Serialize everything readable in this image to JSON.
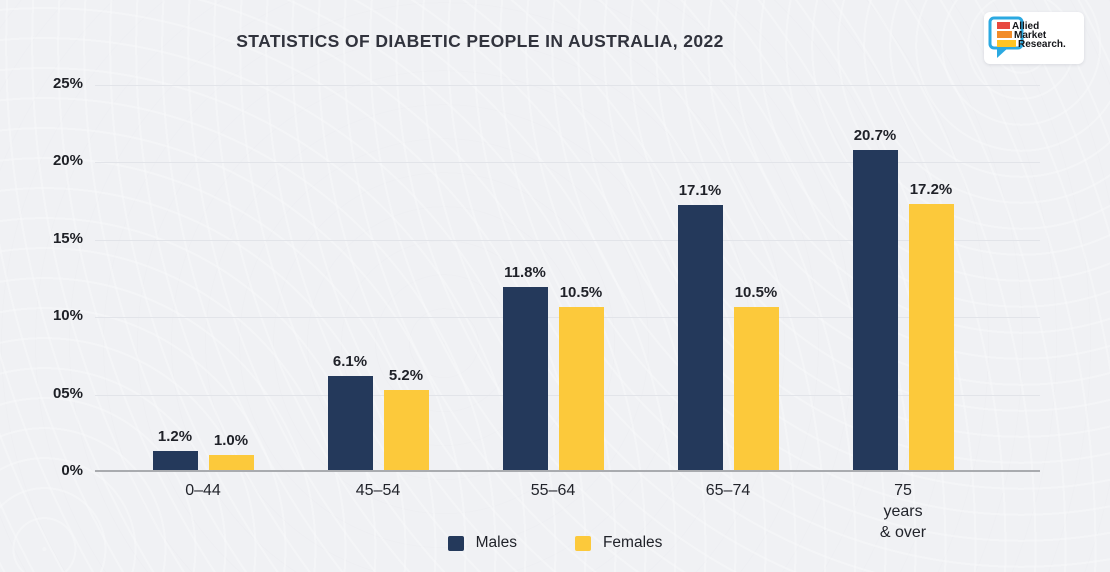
{
  "title": "STATISTICS OF DIABETIC PEOPLE IN AUSTRALIA, 2022",
  "logo": {
    "lines": [
      "Allied",
      "Market",
      "Research."
    ],
    "bar_colors": [
      "#e8483f",
      "#f28c2a",
      "#ffc425"
    ],
    "bubble_color": "#2ba9e1"
  },
  "chart_data": {
    "type": "bar",
    "title": "STATISTICS OF DIABETIC PEOPLE IN AUSTRALIA, 2022",
    "categories": [
      "0–44",
      "45–54",
      "55–64",
      "65–74",
      "75 years\n& over"
    ],
    "series": [
      {
        "name": "Males",
        "color": "#24395b",
        "values": [
          1.2,
          6.1,
          11.8,
          17.1,
          20.7
        ],
        "labels": [
          "1.2%",
          "6.1%",
          "11.8%",
          "17.1%",
          "20.7%"
        ]
      },
      {
        "name": "Females",
        "color": "#fcc93b",
        "values": [
          1.0,
          5.2,
          10.5,
          10.5,
          17.2
        ],
        "labels": [
          "1.0%",
          "5.2%",
          "10.5%",
          "10.5%",
          "17.2%"
        ]
      }
    ],
    "xlabel": "",
    "ylabel": "",
    "ylim": [
      0,
      25
    ],
    "yticks": [
      {
        "value": 0,
        "label": "0%"
      },
      {
        "value": 5,
        "label": "05%"
      },
      {
        "value": 10,
        "label": "10%"
      },
      {
        "value": 15,
        "label": "15%"
      },
      {
        "value": 20,
        "label": "20%"
      },
      {
        "value": 25,
        "label": "25%"
      }
    ],
    "grid": true,
    "legend_position": "bottom"
  },
  "colors": {
    "background": "#f0f1f4",
    "gridline": "#e2e4e9",
    "axis_line": "#a9abaf",
    "text_dark": "#1f2128",
    "title_text": "#31333d"
  }
}
